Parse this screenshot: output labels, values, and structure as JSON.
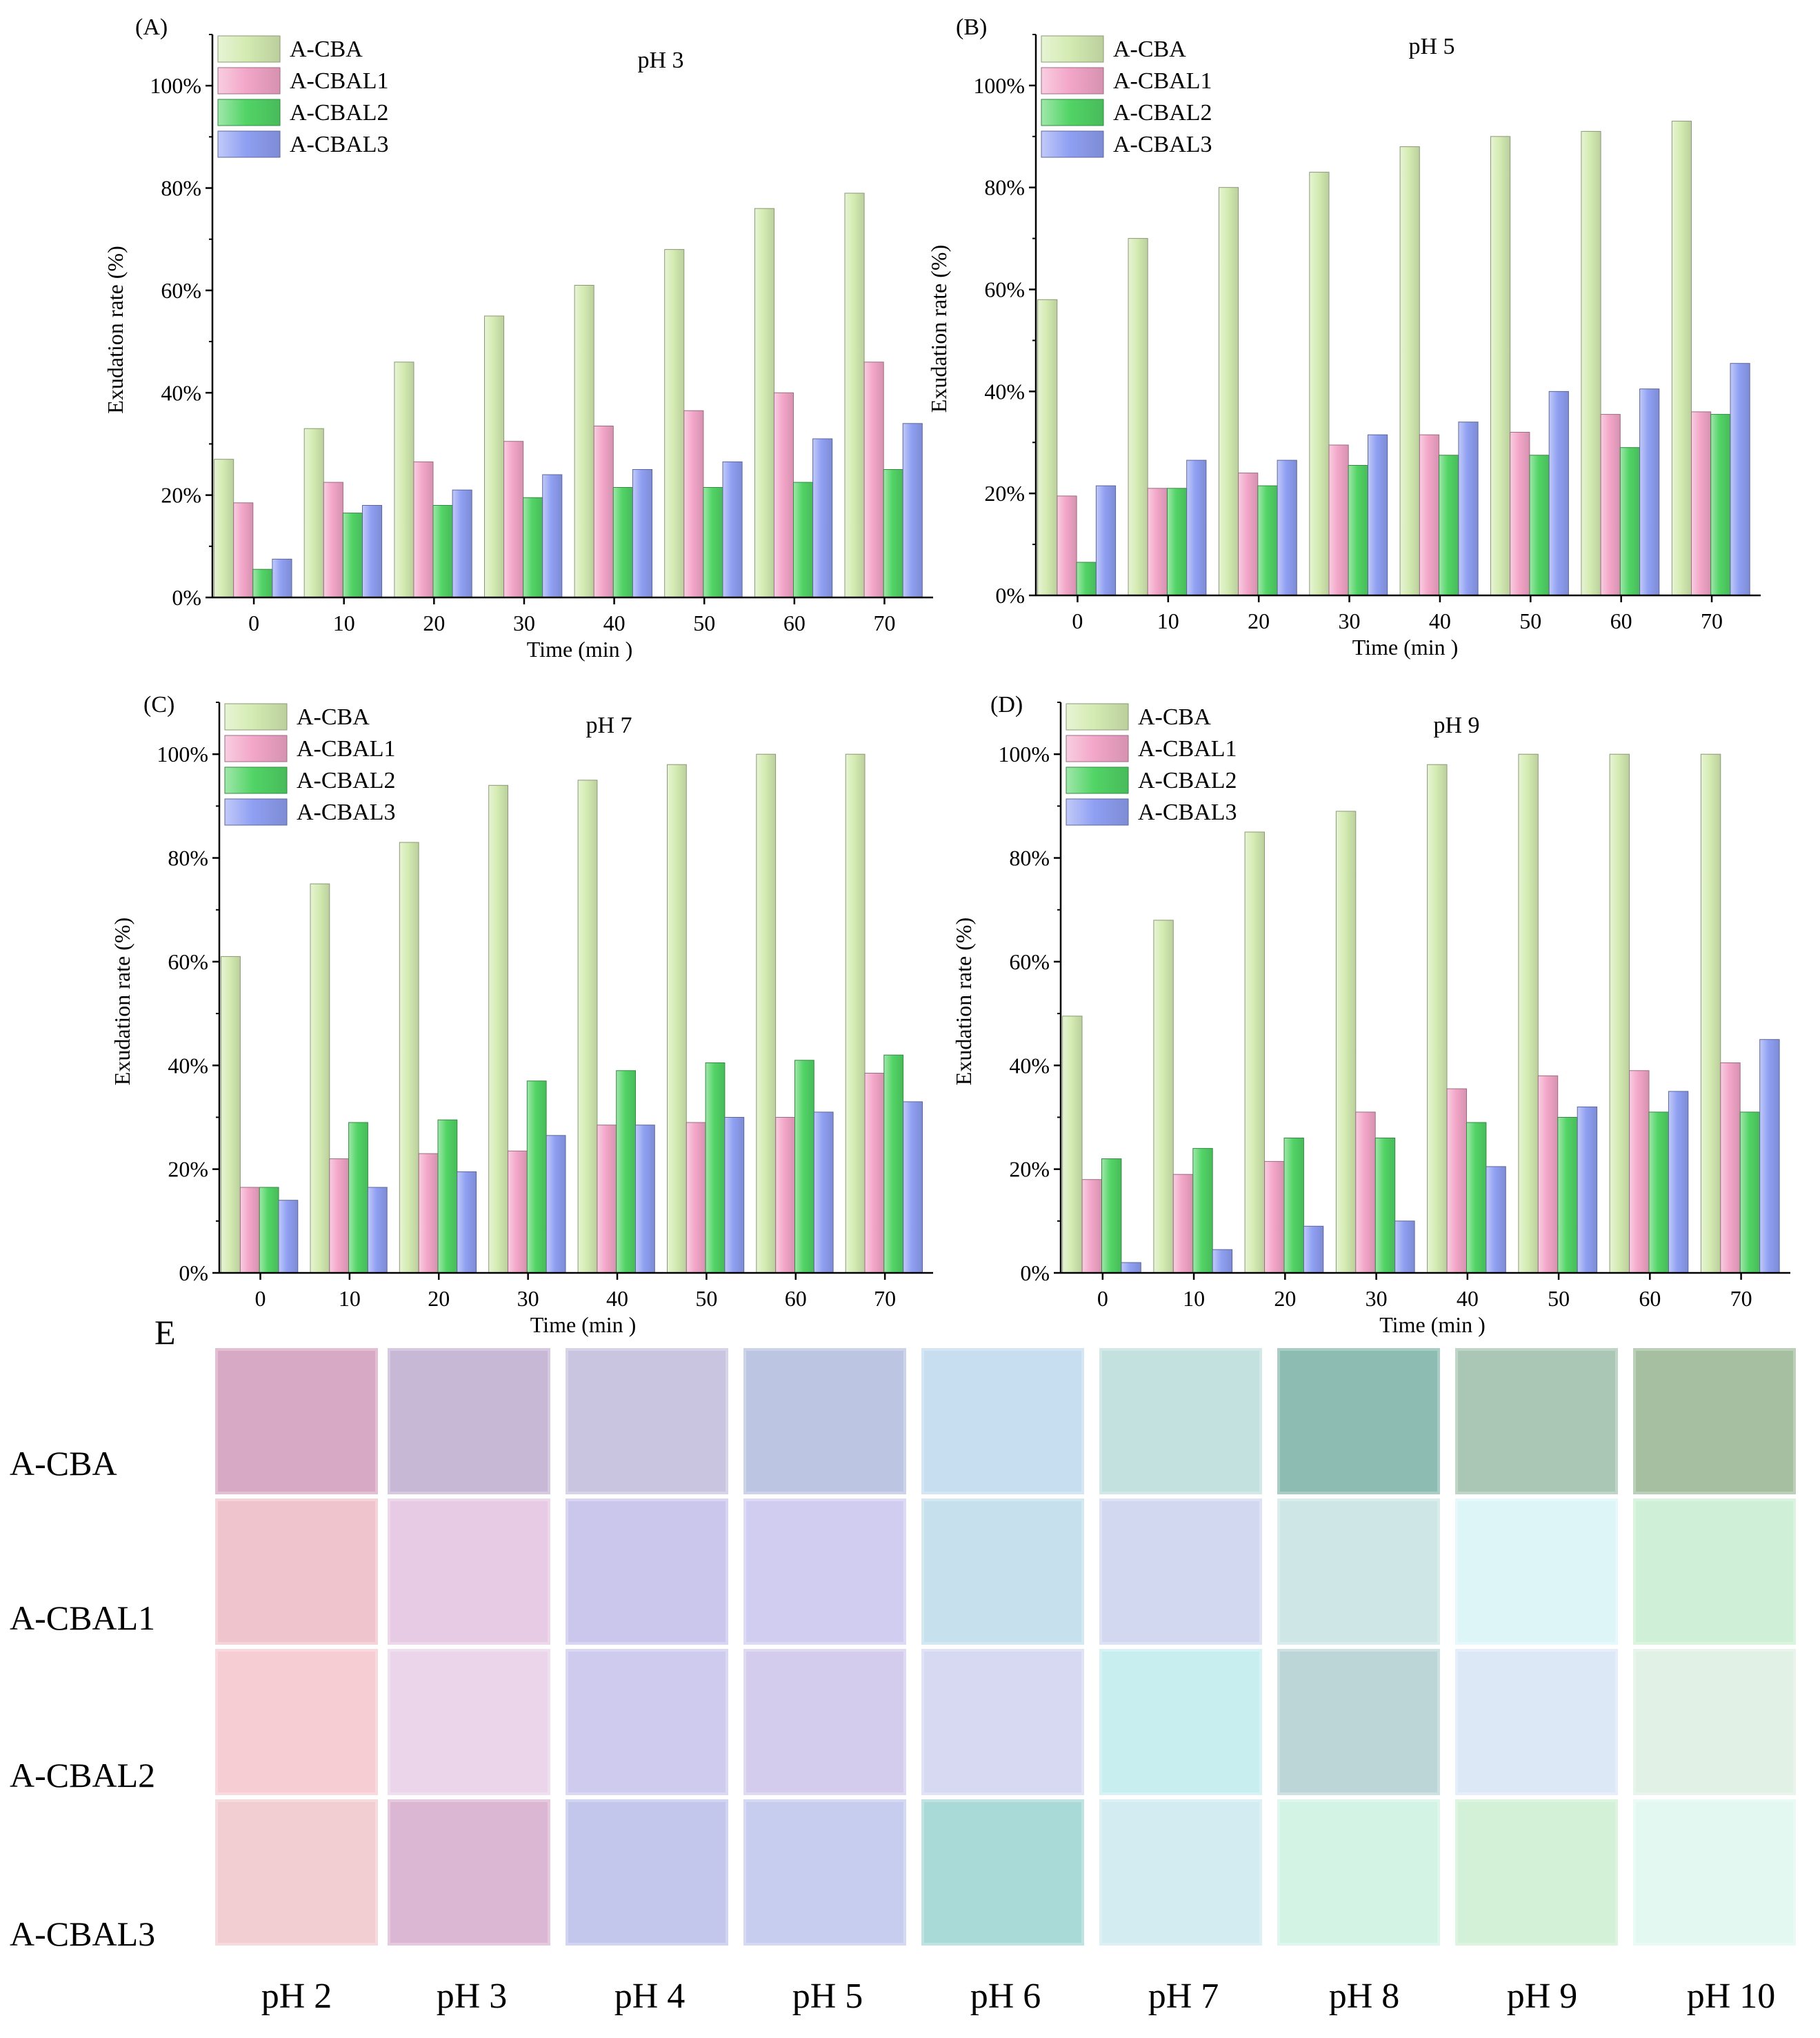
{
  "figure": {
    "panel_e_label": "E",
    "row_labels": [
      "A-CBA",
      "A-CBAL1",
      "A-CBAL2",
      "A-CBAL3"
    ],
    "column_labels": [
      "pH 2",
      "pH 3",
      "pH 4",
      "pH 5",
      "pH 6",
      "pH 7",
      "pH 8",
      "pH 9",
      "pH 10"
    ],
    "swatch_colors": [
      [
        "#d8a9c4",
        "#c7b8d6",
        "#c9c5e0",
        "#bcc5e2",
        "#c6def0",
        "#c3e1df",
        "#8cbcb2",
        "#a9c7b4",
        "#a6bfa0"
      ],
      [
        "#f0c4cc",
        "#e7cbe4",
        "#cbc6ec",
        "#d0cdf0",
        "#c6e0ee",
        "#d2d8f0",
        "#cfe6e6",
        "#def5f7",
        "#cff0d6"
      ],
      [
        "#f6cdd3",
        "#ead5ea",
        "#cecbee",
        "#d4ccec",
        "#d6d9f1",
        "#c9eef0",
        "#bcd6d8",
        "#dde8f7",
        "#e2f1e6"
      ],
      [
        "#f2ced3",
        "#dcb7d3",
        "#c3c7ec",
        "#c7cdee",
        "#a9dad7",
        "#d2ecf1",
        "#d3f3e4",
        "#d2f1d6",
        "#e3f8f1"
      ]
    ]
  },
  "chart_data": [
    {
      "panel": "(A)",
      "type": "bar",
      "title": "pH 3",
      "xlabel": "Time (min )",
      "ylabel": "Exudation rate (%)",
      "categories": [
        "0",
        "10",
        "20",
        "30",
        "40",
        "50",
        "60",
        "70"
      ],
      "ylim": [
        0,
        110
      ],
      "yticks": [
        "0%",
        "20%",
        "40%",
        "60%",
        "80%",
        "100%"
      ],
      "series": [
        {
          "name": "A-CBA",
          "color": "#d4ebb2",
          "values": [
            27,
            33,
            46,
            55,
            61,
            68,
            76,
            79
          ]
        },
        {
          "name": "A-CBAL1",
          "color": "#f3a6c8",
          "values": [
            18.5,
            22.5,
            26.5,
            30.5,
            33.5,
            36.5,
            40,
            46
          ]
        },
        {
          "name": "A-CBAL2",
          "color": "#52d466",
          "values": [
            5.5,
            16.5,
            18,
            19.5,
            21.5,
            21.5,
            22.5,
            25
          ]
        },
        {
          "name": "A-CBAL3",
          "color": "#8f9ff2",
          "values": [
            7.5,
            18,
            21,
            24,
            25,
            26.5,
            31,
            34
          ]
        }
      ]
    },
    {
      "panel": "(B)",
      "type": "bar",
      "title": "pH 5",
      "xlabel": "Time (min )",
      "ylabel": "Exudation rate (%)",
      "categories": [
        "0",
        "10",
        "20",
        "30",
        "40",
        "50",
        "60",
        "70"
      ],
      "ylim": [
        0,
        110
      ],
      "yticks": [
        "0%",
        "20%",
        "40%",
        "60%",
        "80%",
        "100%"
      ],
      "series": [
        {
          "name": "A-CBA",
          "color": "#d4ebb2",
          "values": [
            58,
            70,
            80,
            83,
            88,
            90,
            91,
            93
          ]
        },
        {
          "name": "A-CBAL1",
          "color": "#f3a6c8",
          "values": [
            19.5,
            21,
            24,
            29.5,
            31.5,
            32,
            35.5,
            36
          ]
        },
        {
          "name": "A-CBAL2",
          "color": "#52d466",
          "values": [
            6.5,
            21,
            21.5,
            25.5,
            27.5,
            27.5,
            29,
            35.5
          ]
        },
        {
          "name": "A-CBAL3",
          "color": "#8f9ff2",
          "values": [
            21.5,
            26.5,
            26.5,
            31.5,
            34,
            40,
            40.5,
            45.5
          ]
        }
      ]
    },
    {
      "panel": "(C)",
      "type": "bar",
      "title": "pH 7",
      "xlabel": "Time (min )",
      "ylabel": "Exudation rate (%)",
      "categories": [
        "0",
        "10",
        "20",
        "30",
        "40",
        "50",
        "60",
        "70"
      ],
      "ylim": [
        0,
        110
      ],
      "yticks": [
        "0%",
        "20%",
        "40%",
        "60%",
        "80%",
        "100%"
      ],
      "series": [
        {
          "name": "A-CBA",
          "color": "#d4ebb2",
          "values": [
            61,
            75,
            83,
            94,
            95,
            98,
            100,
            100
          ]
        },
        {
          "name": "A-CBAL1",
          "color": "#f3a6c8",
          "values": [
            16.5,
            22,
            23,
            23.5,
            28.5,
            29,
            30,
            38.5
          ]
        },
        {
          "name": "A-CBAL2",
          "color": "#52d466",
          "values": [
            16.5,
            29,
            29.5,
            37,
            39,
            40.5,
            41,
            42
          ]
        },
        {
          "name": "A-CBAL3",
          "color": "#8f9ff2",
          "values": [
            14,
            16.5,
            19.5,
            26.5,
            28.5,
            30,
            31,
            33
          ]
        }
      ]
    },
    {
      "panel": "(D)",
      "type": "bar",
      "title": "pH 9",
      "xlabel": "Time (min )",
      "ylabel": "Exudation rate (%)",
      "categories": [
        "0",
        "10",
        "20",
        "30",
        "40",
        "50",
        "60",
        "70"
      ],
      "ylim": [
        0,
        110
      ],
      "yticks": [
        "0%",
        "20%",
        "40%",
        "60%",
        "80%",
        "100%"
      ],
      "series": [
        {
          "name": "A-CBA",
          "color": "#d4ebb2",
          "values": [
            49.5,
            68,
            85,
            89,
            98,
            100,
            100,
            100
          ]
        },
        {
          "name": "A-CBAL1",
          "color": "#f3a6c8",
          "values": [
            18,
            19,
            21.5,
            31,
            35.5,
            38,
            39,
            40.5
          ]
        },
        {
          "name": "A-CBAL2",
          "color": "#52d466",
          "values": [
            22,
            24,
            26,
            26,
            29,
            30,
            31,
            31
          ]
        },
        {
          "name": "A-CBAL3",
          "color": "#8f9ff2",
          "values": [
            2,
            4.5,
            9,
            10,
            20.5,
            32,
            35,
            45
          ]
        }
      ]
    }
  ]
}
